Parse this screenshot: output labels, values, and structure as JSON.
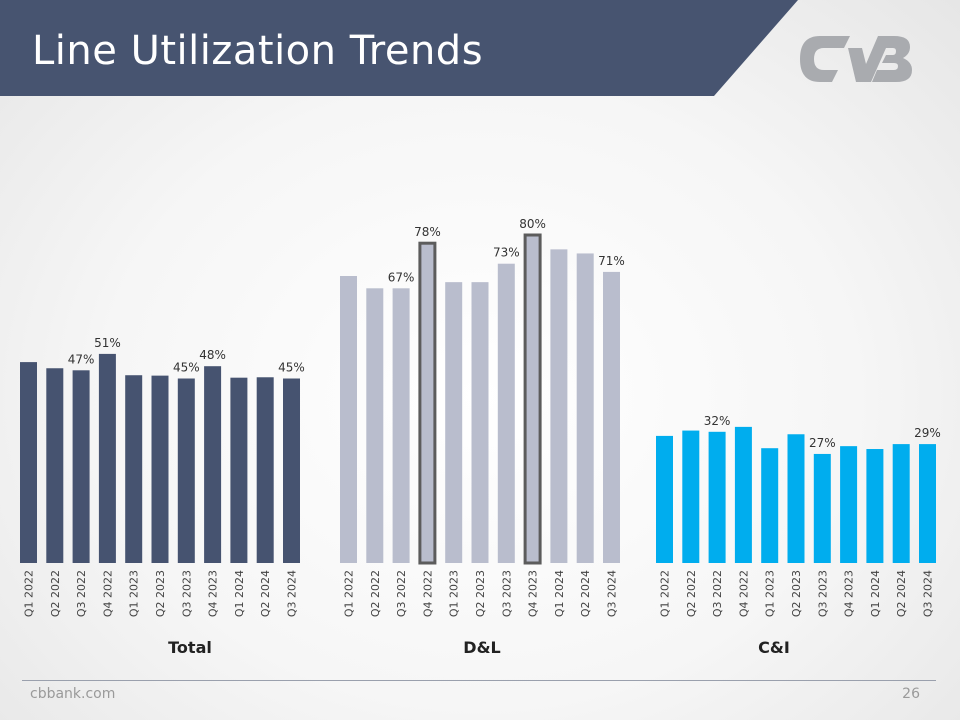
{
  "slide": {
    "title": "Line Utilization Trends",
    "footer_url": "cbbank.com",
    "page_number": "26",
    "logo_text": "CVB"
  },
  "colors": {
    "title_band": "#475470",
    "logo": "#a9abaf",
    "total_bars": "#465370",
    "dl_bars": "#b9bdcd",
    "dl_highlight_border": "#5c5c5c",
    "ci_bars": "#00adee"
  },
  "chart_data": [
    {
      "type": "bar",
      "group_label": "Total",
      "color": "#465370",
      "categories": [
        "Q1 2022",
        "Q2 2022",
        "Q3 2022",
        "Q4 2022",
        "Q1 2023",
        "Q2 2023",
        "Q3 2023",
        "Q4 2023",
        "Q1 2024",
        "Q2 2024",
        "Q3 2024"
      ],
      "values": [
        49,
        47.5,
        47,
        51,
        45.8,
        45.7,
        45,
        48,
        45.2,
        45.3,
        45
      ],
      "data_labels": [
        "",
        "",
        "47%",
        "51%",
        "",
        "",
        "45%",
        "48%",
        "",
        "",
        "45%"
      ],
      "highlighted": []
    },
    {
      "type": "bar",
      "group_label": "D&L",
      "color": "#b9bdcd",
      "categories": [
        "Q1 2022",
        "Q2 2022",
        "Q3 2022",
        "Q4 2022",
        "Q1 2023",
        "Q2 2023",
        "Q3 2023",
        "Q4 2023",
        "Q1 2024",
        "Q2 2024",
        "Q3 2024"
      ],
      "values": [
        70,
        67,
        67,
        78,
        68.5,
        68.5,
        73,
        80,
        76.5,
        75.5,
        71
      ],
      "data_labels": [
        "",
        "",
        "67%",
        "78%",
        "",
        "",
        "73%",
        "80%",
        "",
        "",
        "71%"
      ],
      "highlighted": [
        3,
        7
      ]
    },
    {
      "type": "bar",
      "group_label": "C&I",
      "color": "#00adee",
      "categories": [
        "Q1 2022",
        "Q2 2022",
        "Q3 2022",
        "Q4 2022",
        "Q1 2023",
        "Q2 2023",
        "Q3 2023",
        "Q4 2023",
        "Q1 2024",
        "Q2 2024",
        "Q3 2024"
      ],
      "values": [
        31,
        32.3,
        32,
        33.2,
        28,
        31.4,
        26.6,
        28.5,
        27.8,
        29,
        29
      ],
      "data_labels": [
        "",
        "",
        "32%",
        "",
        "",
        "",
        "27%",
        "",
        "",
        "",
        "29%"
      ],
      "highlighted": []
    }
  ]
}
